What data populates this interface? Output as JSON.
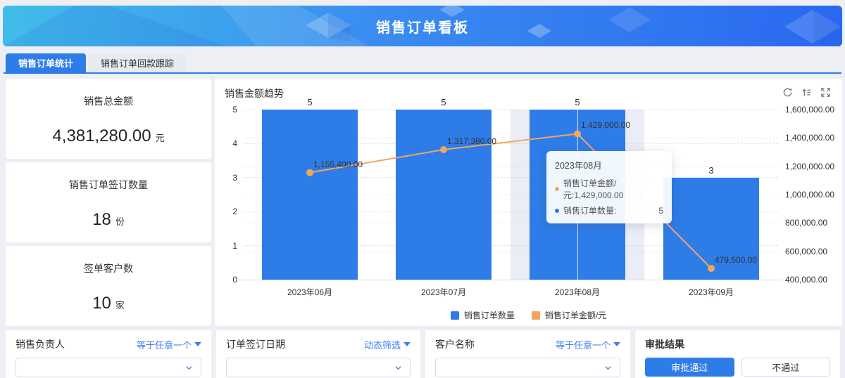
{
  "header": {
    "title": "销售订单看板"
  },
  "tabs": [
    {
      "label": "销售订单统计"
    },
    {
      "label": "销售订单回款跟踪"
    }
  ],
  "stats": [
    {
      "label": "销售总金额",
      "value": "4,381,280.00",
      "unit": "元"
    },
    {
      "label": "销售订单签订数量",
      "value": "18",
      "unit": "份"
    },
    {
      "label": "签单客户数",
      "value": "10",
      "unit": "家"
    }
  ],
  "chart_data": {
    "type": "bar",
    "title": "销售金额趋势",
    "categories": [
      "2023年06月",
      "2023年07月",
      "2023年08月",
      "2023年09月"
    ],
    "series": [
      {
        "name": "销售订单数量",
        "type": "bar",
        "axis": "left",
        "color": "#2e7ce8",
        "values": [
          5,
          5,
          5,
          3
        ],
        "labels": [
          "5",
          "5",
          "5",
          "3"
        ]
      },
      {
        "name": "销售订单金额/元",
        "type": "line",
        "axis": "right",
        "color": "#f3a55f",
        "values": [
          1155400,
          1317380,
          1429000,
          479500
        ],
        "labels": [
          "1,155,400.00",
          "1,317,380.00",
          "1,429,000.00",
          "479,500.00"
        ]
      }
    ],
    "left_axis": {
      "min": 0,
      "max": 5,
      "ticks": [
        "0",
        "1",
        "2",
        "3",
        "4",
        "5"
      ]
    },
    "right_axis": {
      "min": 400000,
      "max": 1600000,
      "ticks": [
        "1,600,000.00",
        "1,400,000.00",
        "1,200,000.00",
        "1,000,000.00",
        "800,000.00",
        "600,000.00",
        "400,000.00"
      ]
    },
    "highlight_index": 2,
    "grid": true,
    "legend_position": "bottom",
    "legend": [
      {
        "label": "销售订单数量",
        "color": "#2e7ce8"
      },
      {
        "label": "销售订单金额/元",
        "color": "#f3a55f"
      }
    ]
  },
  "tooltip": {
    "title": "2023年08月",
    "rows": [
      {
        "dot": "#f3a55f",
        "label": "销售订单金额/元:1,429,000.00",
        "value": ""
      },
      {
        "dot": "#2e7ce8",
        "label": "销售订单数量:",
        "value": "5"
      }
    ]
  },
  "filters": [
    {
      "label": "销售负责人",
      "operator": "等于任意一个"
    },
    {
      "label": "订单签订日期",
      "operator": "动态筛选"
    },
    {
      "label": "客户名称",
      "operator": "等于任意一个"
    },
    {
      "label": "审批结果",
      "buttons": [
        {
          "label": "审批通过"
        },
        {
          "label": "不通过"
        }
      ]
    }
  ]
}
